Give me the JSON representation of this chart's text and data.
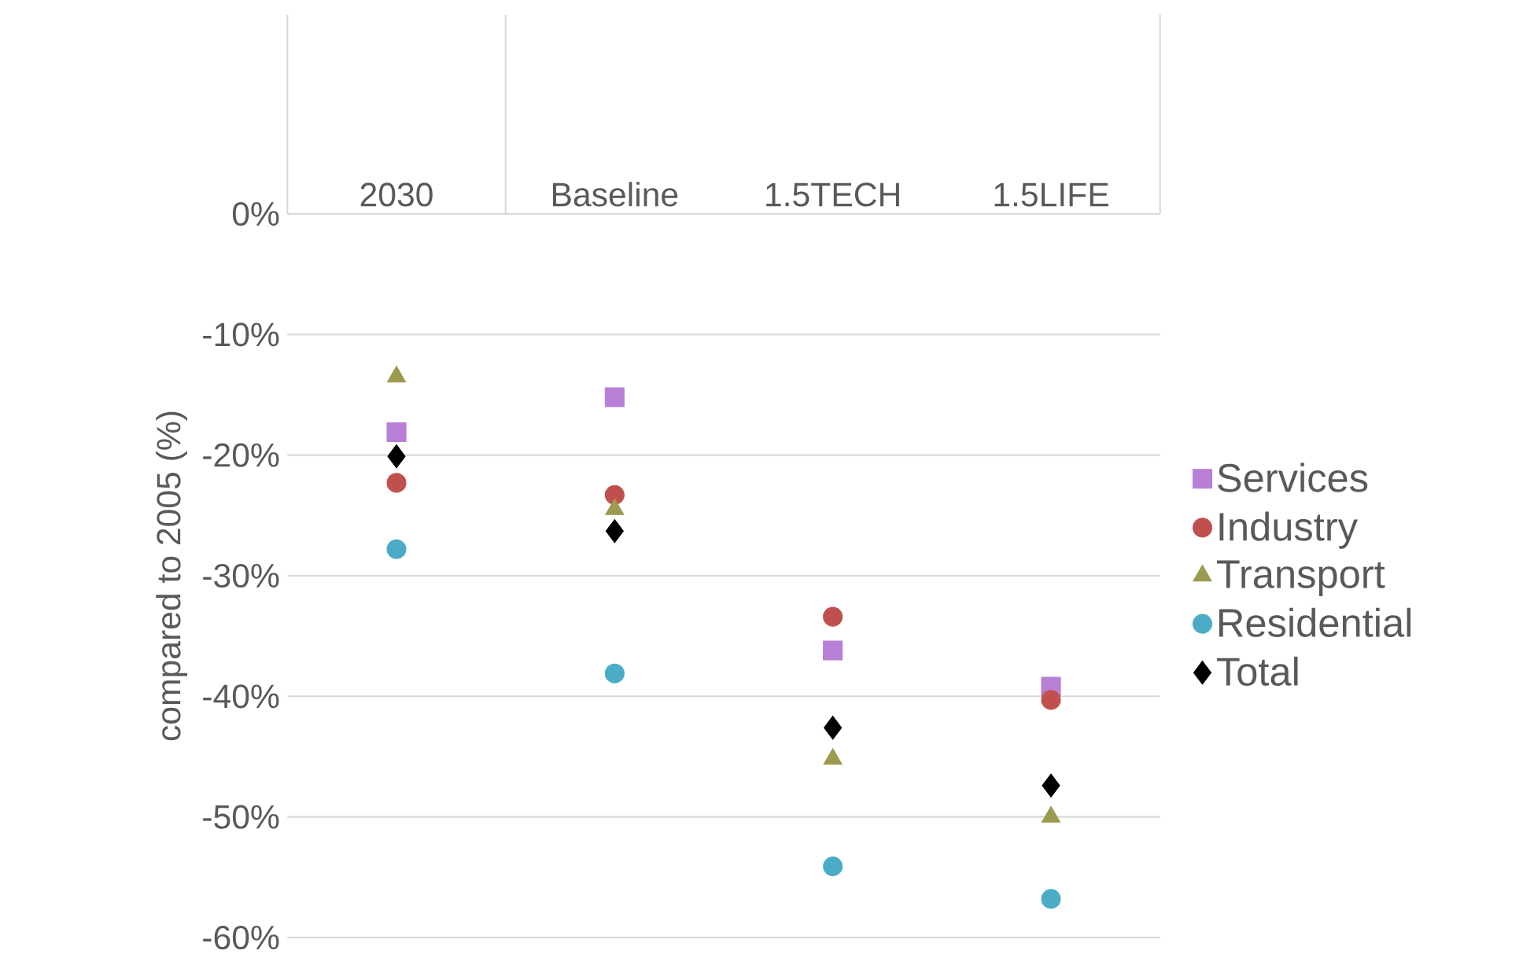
{
  "chart_data": {
    "type": "scatter",
    "categories": [
      "2030",
      "Baseline",
      "1.5TECH",
      "1.5LIFE"
    ],
    "ylabel": "compared to 2005 (%)",
    "ylim": [
      -60,
      0
    ],
    "yticks": [
      {
        "value": -60,
        "label": "-60%"
      },
      {
        "value": -50,
        "label": "-50%"
      },
      {
        "value": -40,
        "label": "-40%"
      },
      {
        "value": -30,
        "label": "-30%"
      },
      {
        "value": -20,
        "label": "-20%"
      },
      {
        "value": -10,
        "label": "-10%"
      },
      {
        "value": 0,
        "label": "0%"
      }
    ],
    "grid": "y",
    "legend": "right",
    "series": [
      {
        "name": "Services",
        "color": "#b77fd6",
        "marker": "square",
        "values": [
          -18.1,
          -15.2,
          -36.2,
          -39.2
        ]
      },
      {
        "name": "Industry",
        "color": "#c0504d",
        "marker": "circle",
        "values": [
          -22.3,
          -23.3,
          -33.4,
          -40.3
        ]
      },
      {
        "name": "Transport",
        "color": "#9c9a4e",
        "marker": "triangle",
        "values": [
          -13.5,
          -24.5,
          -45.2,
          -50.0
        ]
      },
      {
        "name": "Residential",
        "color": "#4bacc6",
        "marker": "circle",
        "values": [
          -27.8,
          -38.1,
          -54.1,
          -56.8
        ]
      },
      {
        "name": "Total",
        "color": "#000000",
        "marker": "diamond",
        "values": [
          -20.1,
          -26.3,
          -42.6,
          -47.4
        ]
      }
    ]
  }
}
